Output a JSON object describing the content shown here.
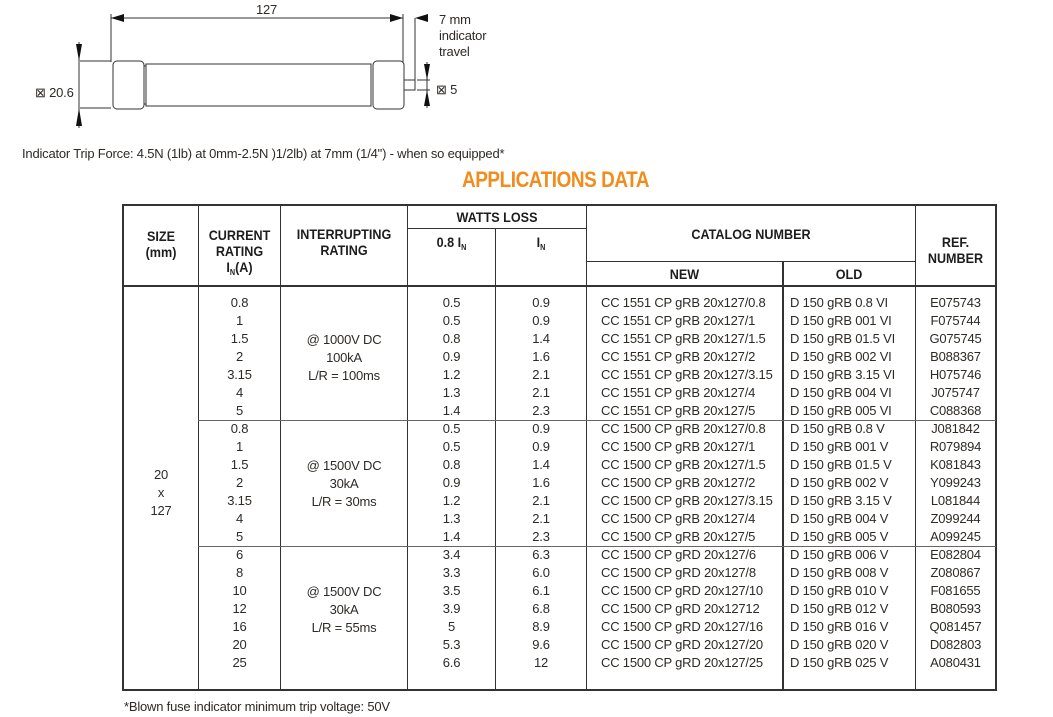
{
  "drawing": {
    "length_label": "127",
    "travel_label": [
      "7 mm",
      "indicator",
      "travel"
    ],
    "diameter_label": "⊠ 20.6",
    "indicator_diameter_label": "⊠ 5",
    "trip_force_note": "Indicator Trip Force: 4.5N (1lb) at 0mm-2.5N )1/2lb) at 7mm (1/4\") - when so equipped*"
  },
  "title": "APPLICATIONS DATA",
  "accent_color": "#f28c1c",
  "table": {
    "headers": {
      "size": [
        "SIZE",
        "(mm)"
      ],
      "current": [
        "CURRENT",
        "RATING",
        "I",
        "N",
        "(A)"
      ],
      "interrupting": [
        "INTERRUPTING",
        "RATING"
      ],
      "watts_loss": "WATTS LOSS",
      "watts_08": "0.8 I",
      "watts_in": "I",
      "sub_n": "N",
      "catalog": "CATALOG NUMBER",
      "new": "NEW",
      "old": "OLD",
      "ref": [
        "REF.",
        "NUMBER"
      ]
    },
    "size_value": [
      "20",
      "x",
      "127"
    ],
    "groups": [
      {
        "interrupting": [
          "@ 1000V DC",
          "100kA",
          "L/R = 100ms"
        ],
        "rows": [
          [
            "0.8",
            "0.5",
            "0.9",
            "CC 1551 CP gRB 20x127/0.8",
            "D 150 gRB 0.8 VI",
            "E075743"
          ],
          [
            "1",
            "0.5",
            "0.9",
            "CC 1551 CP gRB 20x127/1",
            "D 150 gRB 001 VI",
            "F075744"
          ],
          [
            "1.5",
            "0.8",
            "1.4",
            "CC 1551 CP gRB 20x127/1.5",
            "D 150 gRB 01.5 VI",
            "G075745"
          ],
          [
            "2",
            "0.9",
            "1.6",
            "CC 1551 CP gRB 20x127/2",
            "D 150 gRB 002 VI",
            "B088367"
          ],
          [
            "3.15",
            "1.2",
            "2.1",
            "CC 1551 CP gRB 20x127/3.15",
            "D 150 gRB 3.15 VI",
            "H075746"
          ],
          [
            "4",
            "1.3",
            "2.1",
            "CC 1551 CP gRB 20x127/4",
            "D 150 gRB 004 VI",
            "J075747"
          ],
          [
            "5",
            "1.4",
            "2.3",
            "CC 1551 CP gRB 20x127/5",
            "D 150 gRB 005 VI",
            "C088368"
          ]
        ]
      },
      {
        "interrupting": [
          "@ 1500V DC",
          "30kA",
          "L/R = 30ms"
        ],
        "rows": [
          [
            "0.8",
            "0.5",
            "0.9",
            "CC 1500 CP gRB 20x127/0.8",
            "D 150 gRB 0.8 V",
            "J081842"
          ],
          [
            "1",
            "0.5",
            "0.9",
            "CC 1500 CP gRB 20x127/1",
            "D 150 gRB 001 V",
            "R079894"
          ],
          [
            "1.5",
            "0.8",
            "1.4",
            "CC 1500 CP gRB 20x127/1.5",
            "D 150 gRB 01.5 V",
            "K081843"
          ],
          [
            "2",
            "0.9",
            "1.6",
            "CC 1500 CP gRB 20x127/2",
            "D 150 gRB 002 V",
            "Y099243"
          ],
          [
            "3.15",
            "1.2",
            "2.1",
            "CC 1500 CP gRB 20x127/3.15",
            "D 150 gRB 3.15 V",
            "L081844"
          ],
          [
            "4",
            "1.3",
            "2.1",
            "CC 1500 CP gRB 20x127/4",
            "D 150 gRB 004 V",
            "Z099244"
          ],
          [
            "5",
            "1.4",
            "2.3",
            "CC 1500 CP gRB 20x127/5",
            "D 150 gRB 005 V",
            "A099245"
          ]
        ]
      },
      {
        "interrupting": [
          "@ 1500V DC",
          "30kA",
          "L/R = 55ms"
        ],
        "rows": [
          [
            "6",
            "3.4",
            "6.3",
            "CC 1500 CP gRD 20x127/6",
            "D 150 gRB 006 V",
            "E082804"
          ],
          [
            "8",
            "3.3",
            "6.0",
            "CC 1500 CP gRD 20x127/8",
            "D 150 gRB 008 V",
            "Z080867"
          ],
          [
            "10",
            "3.5",
            "6.1",
            "CC 1500 CP gRD 20x127/10",
            "D 150 gRB 010 V",
            "F081655"
          ],
          [
            "12",
            "3.9",
            "6.8",
            "CC 1500 CP gRD 20x12712",
            "D 150 gRB 012 V",
            "B080593"
          ],
          [
            "16",
            "5",
            "8.9",
            "CC 1500 CP gRD 20x127/16",
            "D 150 gRB 016 V",
            "Q081457"
          ],
          [
            "20",
            "5.3",
            "9.6",
            "CC 1500 CP gRD 20x127/20",
            "D 150 gRB 020 V",
            "D082803"
          ],
          [
            "25",
            "6.6",
            "12",
            "CC 1500 CP gRD 20x127/25",
            "D 150 gRB 025 V",
            "A080431"
          ]
        ]
      }
    ]
  },
  "footnote": "*Blown fuse indicator minimum trip voltage: 50V"
}
